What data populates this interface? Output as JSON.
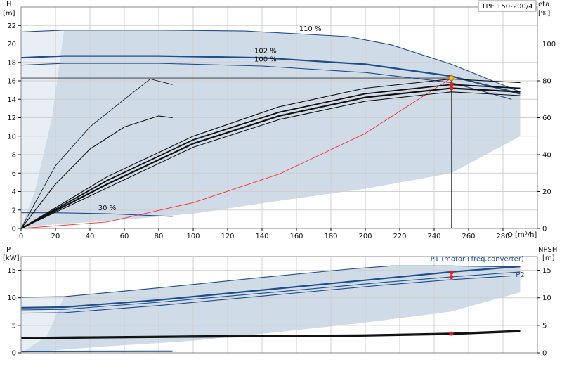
{
  "title_box": "TPE 150-200/4",
  "chart_data": [
    {
      "type": "line",
      "name_hint": "head-efficiency",
      "xlabel": "Q [m³/h]",
      "ylabel_left_top": "H",
      "ylabel_left_unit": "[m]",
      "ylabel_right_top": "eta",
      "ylabel_right_unit": "[%]",
      "xlim": [
        0,
        300
      ],
      "ylim": [
        0,
        24
      ],
      "y2lim": [
        0,
        120
      ],
      "x_ticks": [
        0,
        20,
        40,
        60,
        80,
        100,
        120,
        140,
        160,
        180,
        200,
        220,
        240,
        260,
        280
      ],
      "y_ticks": [
        0,
        2,
        4,
        6,
        8,
        10,
        12,
        14,
        16,
        18,
        20,
        22
      ],
      "y2_ticks": [
        0,
        20,
        40,
        60,
        80,
        100
      ],
      "grid": true,
      "annotations": [
        {
          "text": "110 %",
          "x": 168,
          "y": 21.4
        },
        {
          "text": "102 %",
          "x": 142,
          "y": 19.0
        },
        {
          "text": "100 %",
          "x": 142,
          "y": 18.1
        },
        {
          "text": "30 %",
          "x": 50,
          "y": 2.0
        }
      ],
      "duty_point": {
        "x": 250,
        "y": 16.3
      },
      "series": [
        {
          "role": "head",
          "color": "#1f4e8a",
          "width": 1.1,
          "x": [
            0,
            25,
            80,
            130,
            190,
            215,
            250,
            270,
            290
          ],
          "values": [
            21.3,
            21.5,
            21.5,
            21.4,
            20.8,
            19.9,
            17.8,
            16.3,
            14.8
          ]
        },
        {
          "role": "head",
          "color": "#1f4e8a",
          "width": 2.2,
          "x": [
            0,
            25,
            80,
            140,
            200,
            250,
            290
          ],
          "values": [
            18.5,
            18.7,
            18.7,
            18.5,
            17.8,
            16.5,
            14.6
          ]
        },
        {
          "role": "head",
          "color": "#1f4e8a",
          "width": 1.1,
          "x": [
            0,
            25,
            80,
            140,
            200,
            250,
            285
          ],
          "values": [
            17.7,
            17.9,
            17.9,
            17.6,
            16.9,
            15.8,
            14.0
          ]
        },
        {
          "role": "head",
          "color": "#1f4e8a",
          "width": 1.1,
          "x": [
            0,
            20,
            50,
            88
          ],
          "values": [
            1.7,
            1.7,
            1.6,
            1.3
          ]
        },
        {
          "role": "system",
          "color": "#ff2a2a",
          "width": 0.9,
          "x": [
            0,
            50,
            100,
            150,
            200,
            250
          ],
          "values": [
            0,
            0.7,
            2.8,
            5.9,
            10.3,
            16.3
          ]
        },
        {
          "role": "eta",
          "color": "#111111",
          "width": 0.8,
          "x": [
            0,
            20,
            40,
            60,
            75,
            88
          ],
          "values": [
            0,
            34,
            55,
            70,
            81,
            78
          ]
        },
        {
          "role": "eta",
          "color": "#111111",
          "width": 1.1,
          "x": [
            0,
            20,
            40,
            60,
            80,
            88
          ],
          "values": [
            0,
            24,
            43,
            55,
            61,
            60
          ]
        },
        {
          "role": "eta",
          "color": "#111111",
          "width": 1.1,
          "x": [
            0,
            50,
            100,
            150,
            200,
            250,
            290
          ],
          "values": [
            0,
            28,
            50,
            66,
            76,
            81,
            79
          ]
        },
        {
          "role": "eta",
          "color": "#111111",
          "width": 1.8,
          "x": [
            0,
            50,
            100,
            150,
            200,
            250,
            290
          ],
          "values": [
            0,
            26,
            48,
            63,
            73,
            78,
            76
          ]
        },
        {
          "role": "eta",
          "color": "#111111",
          "width": 2.2,
          "x": [
            0,
            50,
            100,
            150,
            200,
            250,
            290
          ],
          "values": [
            0,
            24,
            46,
            61,
            71,
            76,
            74
          ]
        },
        {
          "role": "eta",
          "color": "#111111",
          "width": 1.1,
          "x": [
            0,
            50,
            100,
            150,
            200,
            250,
            290
          ],
          "values": [
            0,
            22,
            44,
            59,
            69,
            74,
            72
          ]
        }
      ],
      "markers_y2": [
        {
          "x": 250,
          "value": 81
        },
        {
          "x": 250,
          "value": 78
        },
        {
          "x": 250,
          "value": 76
        }
      ]
    },
    {
      "type": "line",
      "name_hint": "power-npsh",
      "ylabel_left_top": "P",
      "ylabel_left_unit": "[kW]",
      "ylabel_right_top": "NPSH",
      "ylabel_right_unit": "[m]",
      "xlim": [
        0,
        300
      ],
      "ylim": [
        0,
        17.5
      ],
      "y2lim": [
        0,
        17.5
      ],
      "y_ticks": [
        0,
        5,
        10,
        15
      ],
      "y2_ticks": [
        0,
        5,
        10,
        15
      ],
      "grid": true,
      "annotations": [
        {
          "text": "P1 (motor+freq.converter)",
          "x": 265,
          "y": 16.7
        },
        {
          "text": "P2",
          "x": 290,
          "y": 13.8
        }
      ],
      "series": [
        {
          "role": "power",
          "color": "#1f4e8a",
          "width": 1.1,
          "x": [
            0,
            25,
            80,
            140,
            190,
            215,
            250,
            290
          ],
          "values": [
            10.1,
            10.2,
            11.8,
            13.7,
            15.2,
            15.8,
            15.8,
            15.6
          ]
        },
        {
          "role": "power",
          "color": "#1f4e8a",
          "width": 2.2,
          "x": [
            0,
            25,
            80,
            150,
            210,
            250,
            290
          ],
          "values": [
            8.2,
            8.3,
            9.6,
            11.7,
            13.5,
            14.7,
            15.7
          ]
        },
        {
          "role": "power",
          "color": "#1f4e8a",
          "width": 1.1,
          "x": [
            0,
            25,
            80,
            150,
            210,
            250,
            290
          ],
          "values": [
            7.8,
            7.9,
            9.2,
            11.1,
            12.8,
            13.8,
            14.7
          ]
        },
        {
          "role": "power",
          "color": "#1f4e8a",
          "width": 1.1,
          "x": [
            0,
            25,
            80,
            150,
            210,
            250,
            285
          ],
          "values": [
            7.2,
            7.3,
            8.6,
            10.6,
            12.3,
            13.3,
            14.0
          ]
        },
        {
          "role": "power",
          "color": "#1f4e8a",
          "width": 2.0,
          "x": [
            0,
            88
          ],
          "values": [
            0.25,
            0.3
          ]
        },
        {
          "role": "npsh",
          "color": "#111111",
          "width": 1.1,
          "x": [
            0,
            25,
            100,
            200,
            250,
            290
          ],
          "values": [
            2.8,
            2.9,
            3.1,
            3.3,
            3.6,
            4.1
          ]
        },
        {
          "role": "npsh",
          "color": "#111111",
          "width": 2.4,
          "x": [
            0,
            25,
            100,
            200,
            250,
            290
          ],
          "values": [
            2.6,
            2.7,
            2.9,
            3.1,
            3.4,
            3.9
          ]
        }
      ],
      "markers": [
        {
          "x": 250,
          "value": 14.6
        },
        {
          "x": 250,
          "value": 13.8
        },
        {
          "x": 250,
          "value": 3.5
        }
      ]
    }
  ],
  "colors": {
    "envelope_fill": "#cfdbe6",
    "low_region_fill": "#e8eef4",
    "curve_blue": "#1f4e8a",
    "marker_red": "#e02020",
    "duty_marker": "#ffc000"
  }
}
